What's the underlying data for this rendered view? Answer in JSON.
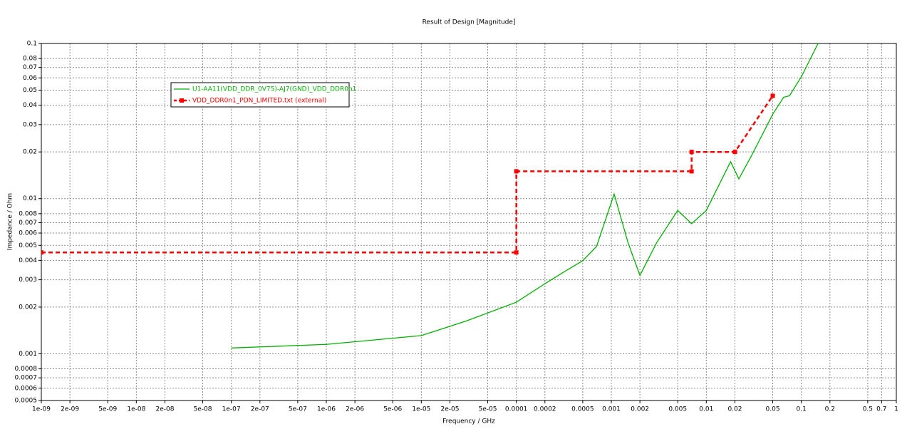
{
  "chart_data": {
    "type": "line",
    "title": "Result of Design [Magnitude]",
    "x_label": "Frequency / GHz",
    "y_label": "Impedance / Ohm",
    "xscale": "log",
    "yscale": "log",
    "grid": true,
    "legend": "upper left",
    "xlim": [
      1e-09,
      1
    ],
    "ylim": [
      0.0005,
      0.1
    ],
    "xticks": [
      {
        "value": 1e-09,
        "label": "1e-09"
      },
      {
        "value": 2e-09,
        "label": "2e-09"
      },
      {
        "value": 5e-09,
        "label": "5e-09"
      },
      {
        "value": 1e-08,
        "label": "1e-08"
      },
      {
        "value": 2e-08,
        "label": "2e-08"
      },
      {
        "value": 5e-08,
        "label": "5e-08"
      },
      {
        "value": 1e-07,
        "label": "1e-07"
      },
      {
        "value": 2e-07,
        "label": "2e-07"
      },
      {
        "value": 5e-07,
        "label": "5e-07"
      },
      {
        "value": 1e-06,
        "label": "1e-06"
      },
      {
        "value": 2e-06,
        "label": "2e-06"
      },
      {
        "value": 5e-06,
        "label": "5e-06"
      },
      {
        "value": 1e-05,
        "label": "1e-05"
      },
      {
        "value": 2e-05,
        "label": "2e-05"
      },
      {
        "value": 5e-05,
        "label": "5e-05"
      },
      0.0001,
      0.0002,
      0.0005,
      0.001,
      0.002,
      0.005,
      0.01,
      0.02,
      0.05,
      0.1,
      0.2,
      0.5,
      0.7,
      1
    ],
    "yticks": [
      0.0005,
      0.0006,
      0.0007,
      0.0008,
      0.001,
      0.002,
      0.003,
      0.004,
      0.005,
      0.006,
      0.007,
      0.008,
      0.01,
      0.02,
      0.03,
      0.04,
      0.05,
      0.06,
      0.07,
      0.08,
      0.1
    ],
    "series": [
      {
        "name": "U1-AA11(VDD_DDR_0V75)-AJ7(GND)_VDD_DDR0n1",
        "color": "#00b000",
        "style": "solid",
        "markers": false,
        "x": [
          1e-07,
          1e-06,
          1e-05,
          3e-05,
          0.0001,
          0.0002,
          0.0003,
          0.0005,
          0.0007,
          0.00107,
          0.0015,
          0.002,
          0.003,
          0.005,
          0.007,
          0.01,
          0.018,
          0.022,
          0.03,
          0.05,
          0.065,
          0.075,
          0.1,
          0.15
        ],
        "values": [
          0.00109,
          0.00115,
          0.00131,
          0.00163,
          0.00215,
          0.00283,
          0.0033,
          0.00398,
          0.00493,
          0.0107,
          0.0052,
          0.0032,
          0.0052,
          0.0084,
          0.0069,
          0.0084,
          0.0173,
          0.0134,
          0.019,
          0.035,
          0.045,
          0.046,
          0.061,
          0.1
        ]
      },
      {
        "name": "VDD_DDR0n1_PDN_LIMITED.txt (external)",
        "color": "#ff0000",
        "style": "dashed",
        "markers": true,
        "x": [
          1e-09,
          0.0001,
          0.0001,
          0.007,
          0.007,
          0.02,
          0.05
        ],
        "values": [
          0.0045,
          0.0045,
          0.015,
          0.015,
          0.02,
          0.02,
          0.046
        ]
      }
    ]
  }
}
